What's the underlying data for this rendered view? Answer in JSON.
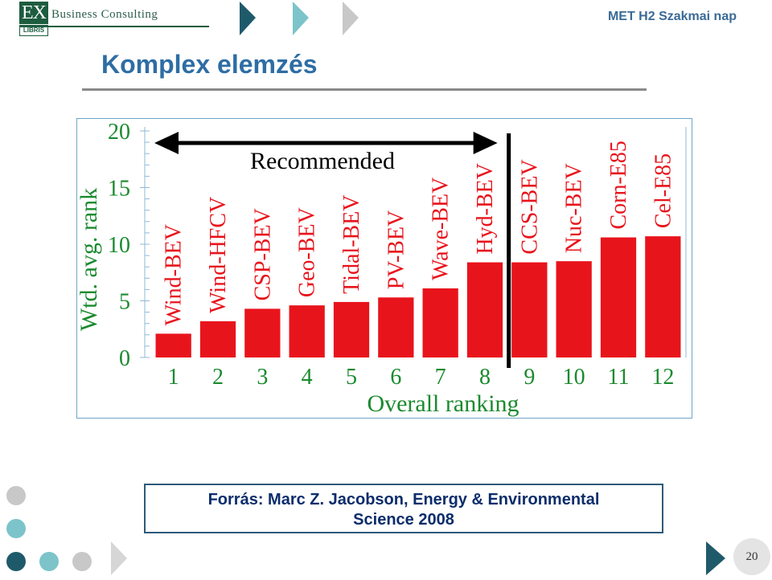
{
  "header": {
    "logo_mark": "EX",
    "logo_sub": "LIBRIS",
    "logo_text": "Business Consulting",
    "right_title": "MET H2 Szakmai nap"
  },
  "slide": {
    "title": "Komplex elemzés",
    "source_line1": "Forrás: Marc Z. Jacobson, Energy & Environmental",
    "source_line2": "Science 2008",
    "page_number": "20"
  },
  "colors": {
    "bar": "#e8141c",
    "title": "#2e6da4",
    "dark_teal": "#1f5a6b",
    "light_teal": "#7cc4c9",
    "grey": "#c8c8c8"
  },
  "chart_data": {
    "type": "bar",
    "categories": [
      "1",
      "2",
      "3",
      "4",
      "5",
      "6",
      "7",
      "8",
      "9",
      "10",
      "11",
      "12"
    ],
    "bar_labels": [
      "Wind-BEV",
      "Wind-HFCV",
      "CSP-BEV",
      "Geo-BEV",
      "Tidal-BEV",
      "PV-BEV",
      "Wave-BEV",
      "Hyd-BEV",
      "CCS-BEV",
      "Nuc-BEV",
      "Corn-E85",
      "Cel-E85"
    ],
    "values": [
      2.1,
      3.2,
      4.3,
      4.6,
      4.9,
      5.3,
      6.1,
      8.4,
      8.4,
      8.5,
      10.6,
      10.7
    ],
    "xlabel": "Overall ranking",
    "ylabel": "Wtd. avg. rank",
    "yticks": [
      "0",
      "5",
      "10",
      "15",
      "20"
    ],
    "ylim": [
      0,
      20
    ],
    "annotation": "Recommended",
    "divider_after_rank": 8,
    "grid": false,
    "legend": "none"
  }
}
